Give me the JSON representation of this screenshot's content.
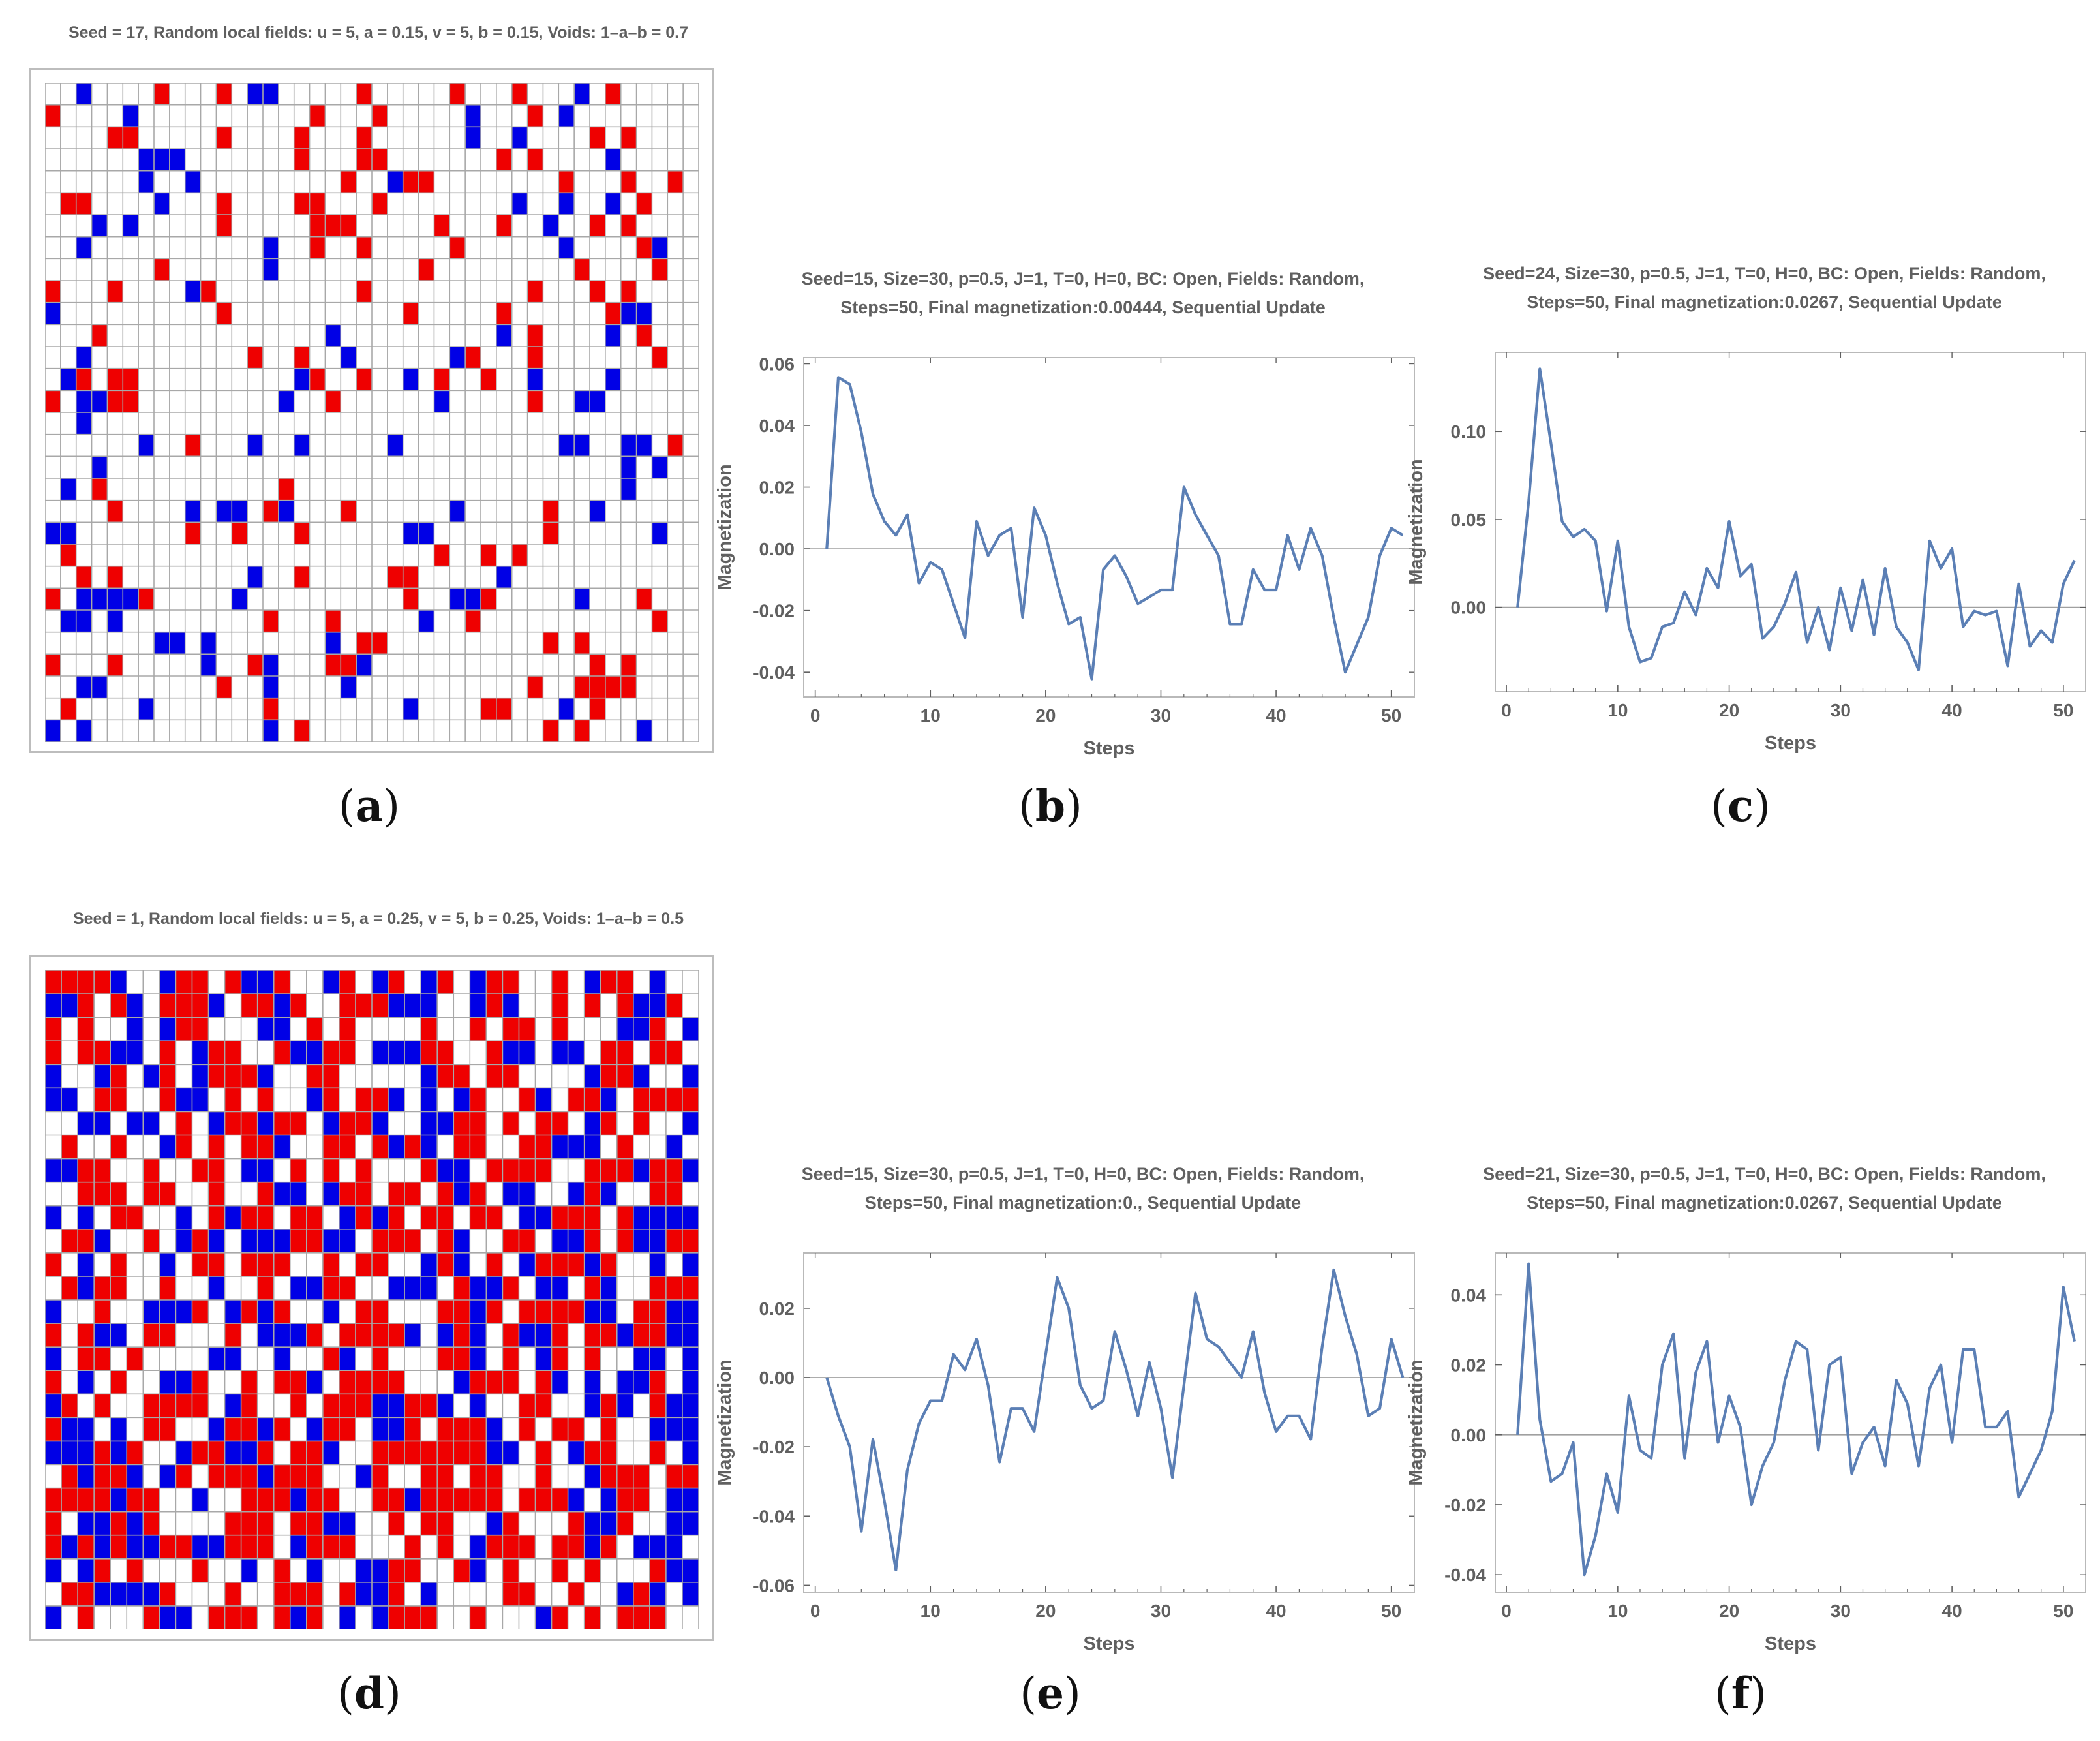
{
  "grid_a": {
    "title": "Seed = 17, Random local fields: u = 5, a = 0.15, v = 5, b = 0.15, Voids: 1–a–b = 0.7",
    "rows": [
      "..B....R...R.BB.....R.....R...R...B.R.....",
      "R....B...........R...R.....B...R.B.......",
      "....RR.....R....R...R......B..B....R.R...",
      "......BBB.......R...RR.......R.R....B....",
      "......B..B.........R..BRR........R...R..R",
      ".RR....B...R....RR...R........B..B..B.R..",
      "...B.B.....R.....RRR.....R...R..B..R.R...",
      "..B...........B..R..R.....R......B....RB.",
      ".......R......B.........R.........R....R.",
      "R...R....BR.........R..........R...R.R...",
      "B..........R...........R.....R......RBB..",
      "...R..............B..........B.R....B.R..",
      "..B..........R..R..B......BR...R.......R.",
      ".BR.RR..........BR..R..B.R..R..B....B....",
      "R.BBRR.........B..R......B.....R..BB.....",
      "..B......................................",
      "......B..R...B..B.....B..........BB..BB.R",
      "...B.................................B.B.",
      ".B.R...........R.....................B...",
      "....R....B.BB.RB...R......B.....R..B.....",
      "BB.......R..R...R......BB.......R......B.",
      ".R.......................R..R.R.........",
      "..R.R........B..R.....RR.....B...........",
      "R.BBBBR.....B..........R..BBR.....B...R..",
      ".BB.B.........R...R.....B..R...........R.",
      ".......BB.B.......B.RR..........R.R......",
      "R...R.....B..RB...RRB..............R.R..",
      "..BB.......R..B....B...........R..RRRR...",
      ".R....B.......R........B....RR...B.R....",
      "B.B...........B.R...............R.R...B.."
    ]
  },
  "grid_d": {
    "title": "Seed = 1, Random local fields: u = 5, a = 0.25, v = 5, b = 0.25, Voids: 1–a–b = 0.5",
    "rows": [
      "RRRRB..BRR.RBBR..BR.BR.BR.BRR..R.BRR.B..",
      "BBR.RB.RRRB.RRBR..RRRBBB..BRB..R.R.RBBR.",
      "R.R..B.BRR...BB.R.R....R..R.RR.R...BBR.B",
      "R.RRBB.R.BRR..RBBRR.BBBRR..RBB.BB.RR.RR.",
      "B..BR.BR.BRRRB..RR.....BRR.RR....BRRB..B",
      "BB.RR..RBB.R.R..BR.RRB.B.BR..RB.RRB.RRRR",
      "..BB.BB.R.BRRBRR.BRRB..BBRR.R.RR.BR.R..B",
      ".R..R..BR.R.RRB..RR.RBRB.RR..RRBBB.R..B.",
      "BBRR..R..RR.BB.R.R.R...RBB.RRRR..RRRBRRB",
      "..RRR.RR..R..RBB.BRR.RR.RBR.BB..BRB..RR.",
      "B.B.RR..B.RBRR.RR.BRBR.RR.RR.BBRRR.RBBBB",
      ".RRB..R.BRB.BBBRRBB.RRR.RB..RR.BBR.RBBRR",
      "R.B.R..B.RR.RRR..R.RR..BRB.R.BRRRBR..B.B",
      ".RBRR..R..B..R.BBRR..BBB.RBBR.BB.RB..RRR",
      "B..R..BBBR.BRBR..B.RR...RRBR.RRRRBB.RRBB",
      "R.RBB.RR...R.BBBR.RRRRB.BRB.RBBR.RRBRRBB",
      "B.RR.R....BB..B..RB.R...RRB.R.BR.R..BB.B",
      "R.B.R..BBR..R.RRB.RRRR...BRRR.RB.B.BBR.B",
      "BR.R..RRRR.BR..R.RRRBBRRB.B..RR..BRB.RBB",
      "RBB.B.RR..BRRBR.BRR.BBR.RRRB.R.RR.R..BBB",
      "BBBRBR..BRRBBR.RRB..RRRRRRRBB.R.BRR..R.B",
      ".RBRRB.BR.RRRBRRR..BR..RR.RR..R..BRRR.RR",
      "RRRRBRR..B..RRRBRR..RRBRRRRR.RRRB.BRR.BB",
      "R.BBRBR....RRR.RRBB..R.RR..BR...RBBR..BB",
      "RBRBRBBRRBBRRR.BRRR...R.R.BRRR.RRBR.BBB.",
      "B.BR.R...R..B.R.B..BBRR..RB.R..R.R...RBB",
      ".RRBBBBR...R..RRR.RBBR.B....RR..R..BRB.B",
      "B.R...RBB.RRR.RBR.B.BRRR..R...BR.R.RRR.."
    ]
  },
  "chart_data": [
    {
      "id": "b",
      "type": "line",
      "title": [
        "Seed=15, Size=30, p=0.5, J=1, T=0, H=0, BC: Open, Fields: Random,",
        "Steps=50, Final magnetization:0.00444, Sequential Update"
      ],
      "xlabel": "Steps",
      "ylabel": "Magnetization",
      "xlim": [
        -1,
        52
      ],
      "ylim": [
        -0.048,
        0.062
      ],
      "xticks": [
        0,
        10,
        20,
        30,
        40,
        50
      ],
      "yticks": [
        -0.04,
        -0.02,
        0.0,
        0.02,
        0.04,
        0.06
      ],
      "ytick_labels": [
        "-0.04",
        "-0.02",
        "0.00",
        "0.02",
        "0.04",
        "0.06"
      ],
      "x_start": 1,
      "values": [
        0.0,
        0.0556,
        0.0533,
        0.0378,
        0.0178,
        0.0089,
        0.0044,
        0.0111,
        -0.0111,
        -0.0044,
        -0.0067,
        -0.0178,
        -0.0289,
        0.0089,
        -0.0022,
        0.0044,
        0.0067,
        -0.0222,
        0.0133,
        0.0044,
        -0.0111,
        -0.0244,
        -0.0222,
        -0.0422,
        -0.0067,
        -0.0022,
        -0.0089,
        -0.0178,
        -0.0156,
        -0.0133,
        -0.0133,
        0.02,
        0.0111,
        0.0044,
        -0.0022,
        -0.0244,
        -0.0244,
        -0.0067,
        -0.0133,
        -0.0133,
        0.0044,
        -0.0067,
        0.0067,
        -0.0022,
        -0.0222,
        -0.04,
        -0.0311,
        -0.0222,
        -0.0022,
        0.0067,
        0.0044
      ]
    },
    {
      "id": "c",
      "type": "line",
      "title": [
        "Seed=24, Size=30, p=0.5, J=1, T=0, H=0, BC: Open, Fields: Random,",
        "Steps=50, Final magnetization:0.0267, Sequential Update"
      ],
      "xlabel": "Steps",
      "ylabel": "Magnetization",
      "xlim": [
        -1,
        52
      ],
      "ylim": [
        -0.048,
        0.145
      ],
      "xticks": [
        0,
        10,
        20,
        30,
        40,
        50
      ],
      "yticks": [
        0.0,
        0.05,
        0.1
      ],
      "ytick_labels": [
        "0.00",
        "0.05",
        "0.10"
      ],
      "x_start": 1,
      "values": [
        0.0,
        0.06,
        0.1356,
        0.0933,
        0.0489,
        0.04,
        0.0444,
        0.0378,
        -0.0022,
        0.0378,
        -0.0111,
        -0.0311,
        -0.0289,
        -0.0111,
        -0.0089,
        0.0089,
        -0.0044,
        0.0222,
        0.0111,
        0.0489,
        0.0178,
        0.0244,
        -0.0178,
        -0.0111,
        0.0022,
        0.02,
        -0.02,
        0.0,
        -0.0244,
        0.0111,
        -0.0133,
        0.0156,
        -0.0156,
        0.0222,
        -0.0111,
        -0.02,
        -0.0356,
        0.0378,
        0.0222,
        0.0333,
        -0.0111,
        -0.0022,
        -0.0044,
        -0.0022,
        -0.0333,
        0.0133,
        -0.0222,
        -0.0133,
        -0.02,
        0.0133,
        0.0267
      ]
    },
    {
      "id": "e",
      "type": "line",
      "title": [
        "Seed=15, Size=30, p=0.5, J=1, T=0, H=0, BC: Open, Fields: Random,",
        "Steps=50, Final magnetization:0., Sequential Update"
      ],
      "xlabel": "Steps",
      "ylabel": "Magnetization",
      "xlim": [
        -1,
        52
      ],
      "ylim": [
        -0.062,
        0.036
      ],
      "xticks": [
        0,
        10,
        20,
        30,
        40,
        50
      ],
      "yticks": [
        -0.06,
        -0.04,
        -0.02,
        0.0,
        0.02
      ],
      "ytick_labels": [
        "-0.06",
        "-0.04",
        "-0.02",
        "0.00",
        "0.02"
      ],
      "x_start": 1,
      "values": [
        0.0,
        -0.0111,
        -0.02,
        -0.0444,
        -0.0178,
        -0.0356,
        -0.0556,
        -0.0267,
        -0.0133,
        -0.0067,
        -0.0067,
        0.0067,
        0.0022,
        0.0111,
        -0.0022,
        -0.0244,
        -0.0089,
        -0.0089,
        -0.0156,
        0.0067,
        0.0289,
        0.02,
        -0.0022,
        -0.0089,
        -0.0067,
        0.0133,
        0.0022,
        -0.0111,
        0.0044,
        -0.0089,
        -0.0289,
        -0.0022,
        0.0244,
        0.0111,
        0.0089,
        0.0044,
        0.0,
        0.0133,
        -0.0044,
        -0.0156,
        -0.0111,
        -0.0111,
        -0.0178,
        0.0089,
        0.0311,
        0.0178,
        0.0067,
        -0.0111,
        -0.0089,
        0.0111,
        0.0
      ]
    },
    {
      "id": "f",
      "type": "line",
      "title": [
        "Seed=21, Size=30, p=0.5, J=1, T=0, H=0, BC: Open, Fields: Random,",
        "Steps=50, Final magnetization:0.0267, Sequential Update"
      ],
      "xlabel": "Steps",
      "ylabel": "Magnetization",
      "xlim": [
        -1,
        52
      ],
      "ylim": [
        -0.045,
        0.052
      ],
      "xticks": [
        0,
        10,
        20,
        30,
        40,
        50
      ],
      "yticks": [
        -0.04,
        -0.02,
        0.0,
        0.02,
        0.04
      ],
      "ytick_labels": [
        "-0.04",
        "-0.02",
        "0.00",
        "0.02",
        "0.04"
      ],
      "x_start": 1,
      "values": [
        0.0,
        0.0489,
        0.0044,
        -0.0133,
        -0.0111,
        -0.0022,
        -0.04,
        -0.0289,
        -0.0111,
        -0.0222,
        0.0111,
        -0.0044,
        -0.0067,
        0.02,
        0.0289,
        -0.0067,
        0.0178,
        0.0267,
        -0.0022,
        0.0111,
        0.0022,
        -0.02,
        -0.0089,
        -0.0022,
        0.0156,
        0.0267,
        0.0244,
        -0.0044,
        0.02,
        0.0222,
        -0.0111,
        -0.0022,
        0.0022,
        -0.0089,
        0.0156,
        0.0089,
        -0.0089,
        0.0133,
        0.02,
        -0.0022,
        0.0244,
        0.0244,
        0.0022,
        0.0022,
        0.0067,
        -0.0178,
        -0.0111,
        -0.0044,
        0.0067,
        0.0422,
        0.0267
      ]
    }
  ],
  "colors": {
    "red": "#ef0000",
    "blue": "#0000e6",
    "line": "#5b7fb5",
    "frame": "#b9b9b9",
    "gridline": "#a8a8a8"
  },
  "labels": {
    "a": "a",
    "b": "b",
    "c": "c",
    "d": "d",
    "e": "e",
    "f": "f"
  }
}
